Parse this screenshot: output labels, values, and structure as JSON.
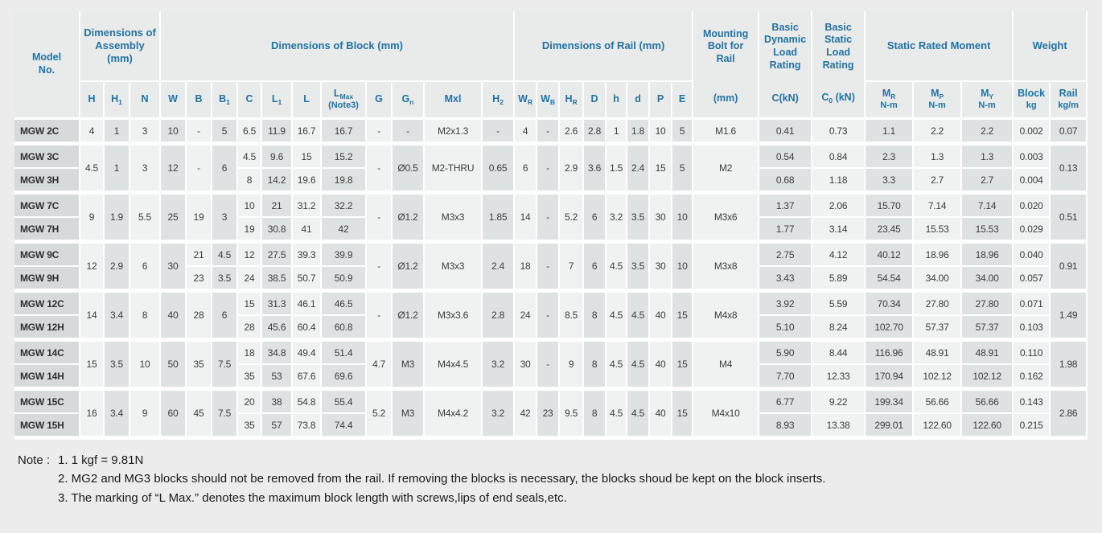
{
  "theme": {
    "accent_blue": "#2173a3",
    "page_background": "#ececec",
    "header_cell_background": "#e9eaea",
    "model_cell_background": "#d7dada",
    "column_light": "#f0f1f1",
    "column_gray": "#dfe2e2"
  },
  "table": {
    "top_headers": [
      {
        "kind": "tall",
        "key": "model",
        "lines": [
          "Model",
          "No."
        ]
      },
      {
        "kind": "group",
        "key": "assembly",
        "label": "Dimensions of Assembly (mm)",
        "span": 3
      },
      {
        "kind": "group",
        "key": "block",
        "label": "Dimensions of Block (mm)",
        "span": 11
      },
      {
        "kind": "group",
        "key": "rail",
        "label": "Dimensions of Rail (mm)",
        "span": 8
      },
      {
        "kind": "tall",
        "key": "bolt",
        "lines": [
          "Mounting",
          "Bolt for",
          "Rail"
        ],
        "unit": {
          "main": "(mm)"
        }
      },
      {
        "kind": "tall",
        "key": "Cdyn",
        "lines": [
          "Basic",
          "Dynamic",
          "Load",
          "Rating"
        ],
        "unit": {
          "main": "C(kN)"
        }
      },
      {
        "kind": "tall",
        "key": "C0",
        "lines": [
          "Basic",
          "Static",
          "Load",
          "Rating"
        ],
        "unit": {
          "main": "C",
          "sub": "0",
          "after": " (kN)"
        }
      },
      {
        "kind": "group",
        "key": "moment",
        "label": "Static Rated Moment",
        "span": 3
      },
      {
        "kind": "group",
        "key": "weight",
        "label": "Weight",
        "span": 2
      }
    ],
    "sub_headers": [
      {
        "key": "H",
        "main": "H"
      },
      {
        "key": "H1",
        "main": "H",
        "sub": "1"
      },
      {
        "key": "N",
        "main": "N"
      },
      {
        "key": "W",
        "main": "W"
      },
      {
        "key": "B",
        "main": "B"
      },
      {
        "key": "B1",
        "main": "B",
        "sub": "1"
      },
      {
        "key": "C",
        "main": "C"
      },
      {
        "key": "L1",
        "main": "L",
        "sub": "1"
      },
      {
        "key": "L",
        "main": "L"
      },
      {
        "key": "LMax",
        "main": "L",
        "sub": "Max",
        "line2": "(Note3)"
      },
      {
        "key": "G",
        "main": "G"
      },
      {
        "key": "Gn",
        "main": "G",
        "sub": "n"
      },
      {
        "key": "Mxl",
        "main": "Mxl"
      },
      {
        "key": "H2",
        "main": "H",
        "sub": "2"
      },
      {
        "key": "WR",
        "main": "W",
        "sub": "R"
      },
      {
        "key": "WB",
        "main": "W",
        "sub": "B"
      },
      {
        "key": "HR",
        "main": "H",
        "sub": "R"
      },
      {
        "key": "D",
        "main": "D"
      },
      {
        "key": "h",
        "main": "h"
      },
      {
        "key": "d",
        "main": "d"
      },
      {
        "key": "P",
        "main": "P"
      },
      {
        "key": "E",
        "main": "E"
      },
      {
        "key": "MR",
        "main": "M",
        "sub": "R",
        "line2": "N-m"
      },
      {
        "key": "MP",
        "main": "M",
        "sub": "P",
        "line2": "N-m"
      },
      {
        "key": "MY",
        "main": "M",
        "sub": "Y",
        "line2": "N-m"
      },
      {
        "key": "block_kg",
        "main": "Block",
        "line2": "kg"
      },
      {
        "key": "rail_kg",
        "main": "Rail",
        "line2": "kg/m"
      }
    ],
    "column_keys": [
      "H",
      "H1",
      "N",
      "W",
      "B",
      "B1",
      "C",
      "L1",
      "L",
      "LMax",
      "G",
      "Gn",
      "Mxl",
      "H2",
      "WR",
      "WB",
      "HR",
      "D",
      "h",
      "d",
      "P",
      "E",
      "bolt",
      "Cdyn",
      "C0",
      "MR",
      "MP",
      "MY",
      "block_kg",
      "rail_kg"
    ],
    "groups": [
      {
        "merged": {},
        "rows": [
          {
            "model": "MGW 2C",
            "cells": {
              "H": "4",
              "H1": "1",
              "N": "3",
              "W": "10",
              "B": "-",
              "B1": "5",
              "C": "6.5",
              "L1": "11.9",
              "L": "16.7",
              "LMax": "16.7",
              "G": "-",
              "Gn": "-",
              "Mxl": "M2x1.3",
              "H2": "-",
              "WR": "4",
              "WB": "-",
              "HR": "2.6",
              "D": "2.8",
              "h": "1",
              "d": "1.8",
              "P": "10",
              "E": "5",
              "bolt": "M1.6",
              "Cdyn": "0.41",
              "C0": "0.73",
              "MR": "1.1",
              "MP": "2.2",
              "MY": "2.2",
              "block_kg": "0.002",
              "rail_kg": "0.07"
            }
          }
        ]
      },
      {
        "merged": {
          "H": "4.5",
          "H1": "1",
          "N": "3",
          "W": "12",
          "B": "-",
          "B1": "6",
          "G": "-",
          "Gn": "Ø0.5",
          "Mxl": "M2-THRU",
          "H2": "0.65",
          "WR": "6",
          "WB": "-",
          "HR": "2.9",
          "D": "3.6",
          "h": "1.5",
          "d": "2.4",
          "P": "15",
          "E": "5",
          "bolt": "M2",
          "rail_kg": "0.13"
        },
        "rows": [
          {
            "model": "MGW 3C",
            "cells": {
              "C": "4.5",
              "L1": "9.6",
              "L": "15",
              "LMax": "15.2",
              "Cdyn": "0.54",
              "C0": "0.84",
              "MR": "2.3",
              "MP": "1.3",
              "MY": "1.3",
              "block_kg": "0.003"
            }
          },
          {
            "model": "MGW 3H",
            "cells": {
              "C": "8",
              "L1": "14.2",
              "L": "19.6",
              "LMax": "19.8",
              "Cdyn": "0.68",
              "C0": "1.18",
              "MR": "3.3",
              "MP": "2.7",
              "MY": "2.7",
              "block_kg": "0.004"
            }
          }
        ]
      },
      {
        "merged": {
          "H": "9",
          "H1": "1.9",
          "N": "5.5",
          "W": "25",
          "B": "19",
          "B1": "3",
          "G": "-",
          "Gn": "Ø1.2",
          "Mxl": "M3x3",
          "H2": "1.85",
          "WR": "14",
          "WB": "-",
          "HR": "5.2",
          "D": "6",
          "h": "3.2",
          "d": "3.5",
          "P": "30",
          "E": "10",
          "bolt": "M3x6",
          "rail_kg": "0.51"
        },
        "rows": [
          {
            "model": "MGW 7C",
            "cells": {
              "C": "10",
              "L1": "21",
              "L": "31.2",
              "LMax": "32.2",
              "Cdyn": "1.37",
              "C0": "2.06",
              "MR": "15.70",
              "MP": "7.14",
              "MY": "7.14",
              "block_kg": "0.020"
            }
          },
          {
            "model": "MGW 7H",
            "cells": {
              "C": "19",
              "L1": "30.8",
              "L": "41",
              "LMax": "42",
              "Cdyn": "1.77",
              "C0": "3.14",
              "MR": "23.45",
              "MP": "15.53",
              "MY": "15.53",
              "block_kg": "0.029"
            }
          }
        ]
      },
      {
        "merged": {
          "H": "12",
          "H1": "2.9",
          "N": "6",
          "W": "30",
          "G": "-",
          "Gn": "Ø1.2",
          "Mxl": "M3x3",
          "H2": "2.4",
          "WR": "18",
          "WB": "-",
          "HR": "7",
          "D": "6",
          "h": "4.5",
          "d": "3.5",
          "P": "30",
          "E": "10",
          "bolt": "M3x8",
          "rail_kg": "0.91"
        },
        "rows": [
          {
            "model": "MGW 9C",
            "cells": {
              "B": "21",
              "B1": "4.5",
              "C": "12",
              "L1": "27.5",
              "L": "39.3",
              "LMax": "39.9",
              "Cdyn": "2.75",
              "C0": "4.12",
              "MR": "40.12",
              "MP": "18.96",
              "MY": "18.96",
              "block_kg": "0.040"
            }
          },
          {
            "model": "MGW 9H",
            "cells": {
              "B": "23",
              "B1": "3.5",
              "C": "24",
              "L1": "38.5",
              "L": "50.7",
              "LMax": "50.9",
              "Cdyn": "3.43",
              "C0": "5.89",
              "MR": "54.54",
              "MP": "34.00",
              "MY": "34.00",
              "block_kg": "0.057"
            }
          }
        ]
      },
      {
        "merged": {
          "H": "14",
          "H1": "3.4",
          "N": "8",
          "W": "40",
          "B": "28",
          "B1": "6",
          "G": "-",
          "Gn": "Ø1.2",
          "Mxl": "M3x3.6",
          "H2": "2.8",
          "WR": "24",
          "WB": "-",
          "HR": "8.5",
          "D": "8",
          "h": "4.5",
          "d": "4.5",
          "P": "40",
          "E": "15",
          "bolt": "M4x8",
          "rail_kg": "1.49"
        },
        "rows": [
          {
            "model": "MGW 12C",
            "cells": {
              "C": "15",
              "L1": "31.3",
              "L": "46.1",
              "LMax": "46.5",
              "Cdyn": "3.92",
              "C0": "5.59",
              "MR": "70.34",
              "MP": "27.80",
              "MY": "27.80",
              "block_kg": "0.071"
            }
          },
          {
            "model": "MGW 12H",
            "cells": {
              "C": "28",
              "L1": "45.6",
              "L": "60.4",
              "LMax": "60.8",
              "Cdyn": "5.10",
              "C0": "8.24",
              "MR": "102.70",
              "MP": "57.37",
              "MY": "57.37",
              "block_kg": "0.103"
            }
          }
        ]
      },
      {
        "merged": {
          "H": "15",
          "H1": "3.5",
          "N": "10",
          "W": "50",
          "B": "35",
          "B1": "7.5",
          "G": "4.7",
          "Gn": "M3",
          "Mxl": "M4x4.5",
          "H2": "3.2",
          "WR": "30",
          "WB": "-",
          "HR": "9",
          "D": "8",
          "h": "4.5",
          "d": "4.5",
          "P": "40",
          "E": "15",
          "bolt": "M4",
          "rail_kg": "1.98"
        },
        "rows": [
          {
            "model": "MGW 14C",
            "cells": {
              "C": "18",
              "L1": "34.8",
              "L": "49.4",
              "LMax": "51.4",
              "Cdyn": "5.90",
              "C0": "8.44",
              "MR": "116.96",
              "MP": "48.91",
              "MY": "48.91",
              "block_kg": "0.110"
            }
          },
          {
            "model": "MGW 14H",
            "cells": {
              "C": "35",
              "L1": "53",
              "L": "67.6",
              "LMax": "69.6",
              "Cdyn": "7.70",
              "C0": "12.33",
              "MR": "170.94",
              "MP": "102.12",
              "MY": "102.12",
              "block_kg": "0.162"
            }
          }
        ]
      },
      {
        "merged": {
          "H": "16",
          "H1": "3.4",
          "N": "9",
          "W": "60",
          "B": "45",
          "B1": "7.5",
          "G": "5.2",
          "Gn": "M3",
          "Mxl": "M4x4.2",
          "H2": "3.2",
          "WR": "42",
          "WB": "23",
          "HR": "9.5",
          "D": "8",
          "h": "4.5",
          "d": "4.5",
          "P": "40",
          "E": "15",
          "bolt": "M4x10",
          "rail_kg": "2.86"
        },
        "rows": [
          {
            "model": "MGW 15C",
            "cells": {
              "C": "20",
              "L1": "38",
              "L": "54.8",
              "LMax": "55.4",
              "Cdyn": "6.77",
              "C0": "9.22",
              "MR": "199.34",
              "MP": "56.66",
              "MY": "56.66",
              "block_kg": "0.143"
            }
          },
          {
            "model": "MGW 15H",
            "cells": {
              "C": "35",
              "L1": "57",
              "L": "73.8",
              "LMax": "74.4",
              "Cdyn": "8.93",
              "C0": "13.38",
              "MR": "299.01",
              "MP": "122.60",
              "MY": "122.60",
              "block_kg": "0.215"
            }
          }
        ]
      }
    ]
  },
  "notes": {
    "prefix": "Note :",
    "line1": "1. 1 kgf = 9.81N",
    "line2": "2. MG2 and MG3 blocks should not be removed from the rail. If removing the blocks is necessary, the blocks shoud be kept on the block inserts.",
    "line3": "3. The marking of “L Max.” denotes the maximum block length with screws,lips of end seals,etc."
  }
}
